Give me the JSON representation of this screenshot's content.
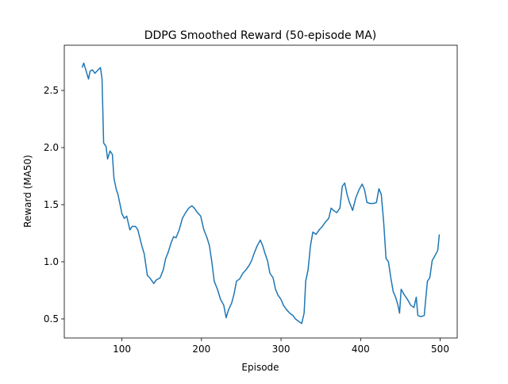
{
  "chart_data": {
    "type": "line",
    "title": "DDPG Smoothed Reward (50-episode MA)",
    "xlabel": "Episode",
    "ylabel": "Reward (MA50)",
    "x": [
      50,
      52,
      55,
      58,
      60,
      63,
      66,
      70,
      73,
      75,
      77,
      80,
      82,
      85,
      88,
      90,
      93,
      95,
      98,
      100,
      103,
      106,
      110,
      113,
      117,
      120,
      125,
      128,
      132,
      135,
      140,
      143,
      148,
      152,
      155,
      158,
      162,
      165,
      168,
      172,
      176,
      180,
      184,
      188,
      191,
      195,
      199,
      203,
      207,
      210,
      213,
      216,
      220,
      224,
      228,
      231,
      234,
      238,
      241,
      244,
      248,
      252,
      256,
      260,
      263,
      266,
      270,
      274,
      277,
      280,
      283,
      286,
      290,
      293,
      296,
      300,
      303,
      307,
      311,
      315,
      318,
      322,
      326,
      329,
      331,
      334,
      337,
      340,
      344,
      348,
      352,
      356,
      360,
      363,
      366,
      370,
      374,
      377,
      380,
      383,
      386,
      390,
      394,
      398,
      402,
      405,
      408,
      412,
      416,
      420,
      423,
      426,
      429,
      432,
      435,
      438,
      441,
      444,
      447,
      449,
      451,
      455,
      459,
      463,
      467,
      470,
      472,
      476,
      480,
      484,
      487,
      490,
      494,
      497,
      499
    ],
    "series": [
      {
        "name": "MA50",
        "color": "#1f77b4",
        "values": [
          2.7,
          2.74,
          2.67,
          2.6,
          2.67,
          2.68,
          2.65,
          2.68,
          2.7,
          2.6,
          2.04,
          2.01,
          1.9,
          1.97,
          1.94,
          1.73,
          1.63,
          1.59,
          1.49,
          1.42,
          1.38,
          1.4,
          1.28,
          1.31,
          1.31,
          1.28,
          1.14,
          1.07,
          0.88,
          0.86,
          0.81,
          0.84,
          0.86,
          0.93,
          1.03,
          1.08,
          1.17,
          1.22,
          1.21,
          1.28,
          1.38,
          1.43,
          1.47,
          1.49,
          1.47,
          1.43,
          1.4,
          1.28,
          1.21,
          1.14,
          1.0,
          0.83,
          0.76,
          0.67,
          0.62,
          0.51,
          0.58,
          0.64,
          0.72,
          0.83,
          0.85,
          0.9,
          0.93,
          0.97,
          1.01,
          1.07,
          1.14,
          1.19,
          1.14,
          1.07,
          1.01,
          0.9,
          0.86,
          0.76,
          0.71,
          0.67,
          0.62,
          0.58,
          0.55,
          0.53,
          0.5,
          0.48,
          0.46,
          0.55,
          0.83,
          0.93,
          1.14,
          1.26,
          1.24,
          1.28,
          1.31,
          1.35,
          1.38,
          1.47,
          1.45,
          1.43,
          1.47,
          1.66,
          1.69,
          1.59,
          1.52,
          1.45,
          1.56,
          1.63,
          1.68,
          1.63,
          1.52,
          1.51,
          1.51,
          1.52,
          1.64,
          1.59,
          1.35,
          1.03,
          1.0,
          0.86,
          0.74,
          0.69,
          0.62,
          0.55,
          0.76,
          0.71,
          0.67,
          0.62,
          0.6,
          0.69,
          0.53,
          0.52,
          0.53,
          0.83,
          0.86,
          1.01,
          1.06,
          1.1,
          1.24
        ]
      }
    ],
    "xlim": [
      27.55,
      521.45
    ],
    "ylim": [
      0.333,
      2.896
    ],
    "xticks": [
      100,
      200,
      300,
      400,
      500
    ],
    "yticks": [
      0.5,
      {
        "value": 1,
        "label": "1.0"
      },
      1.5,
      {
        "value": 2,
        "label": "2.0"
      },
      2.5
    ]
  }
}
